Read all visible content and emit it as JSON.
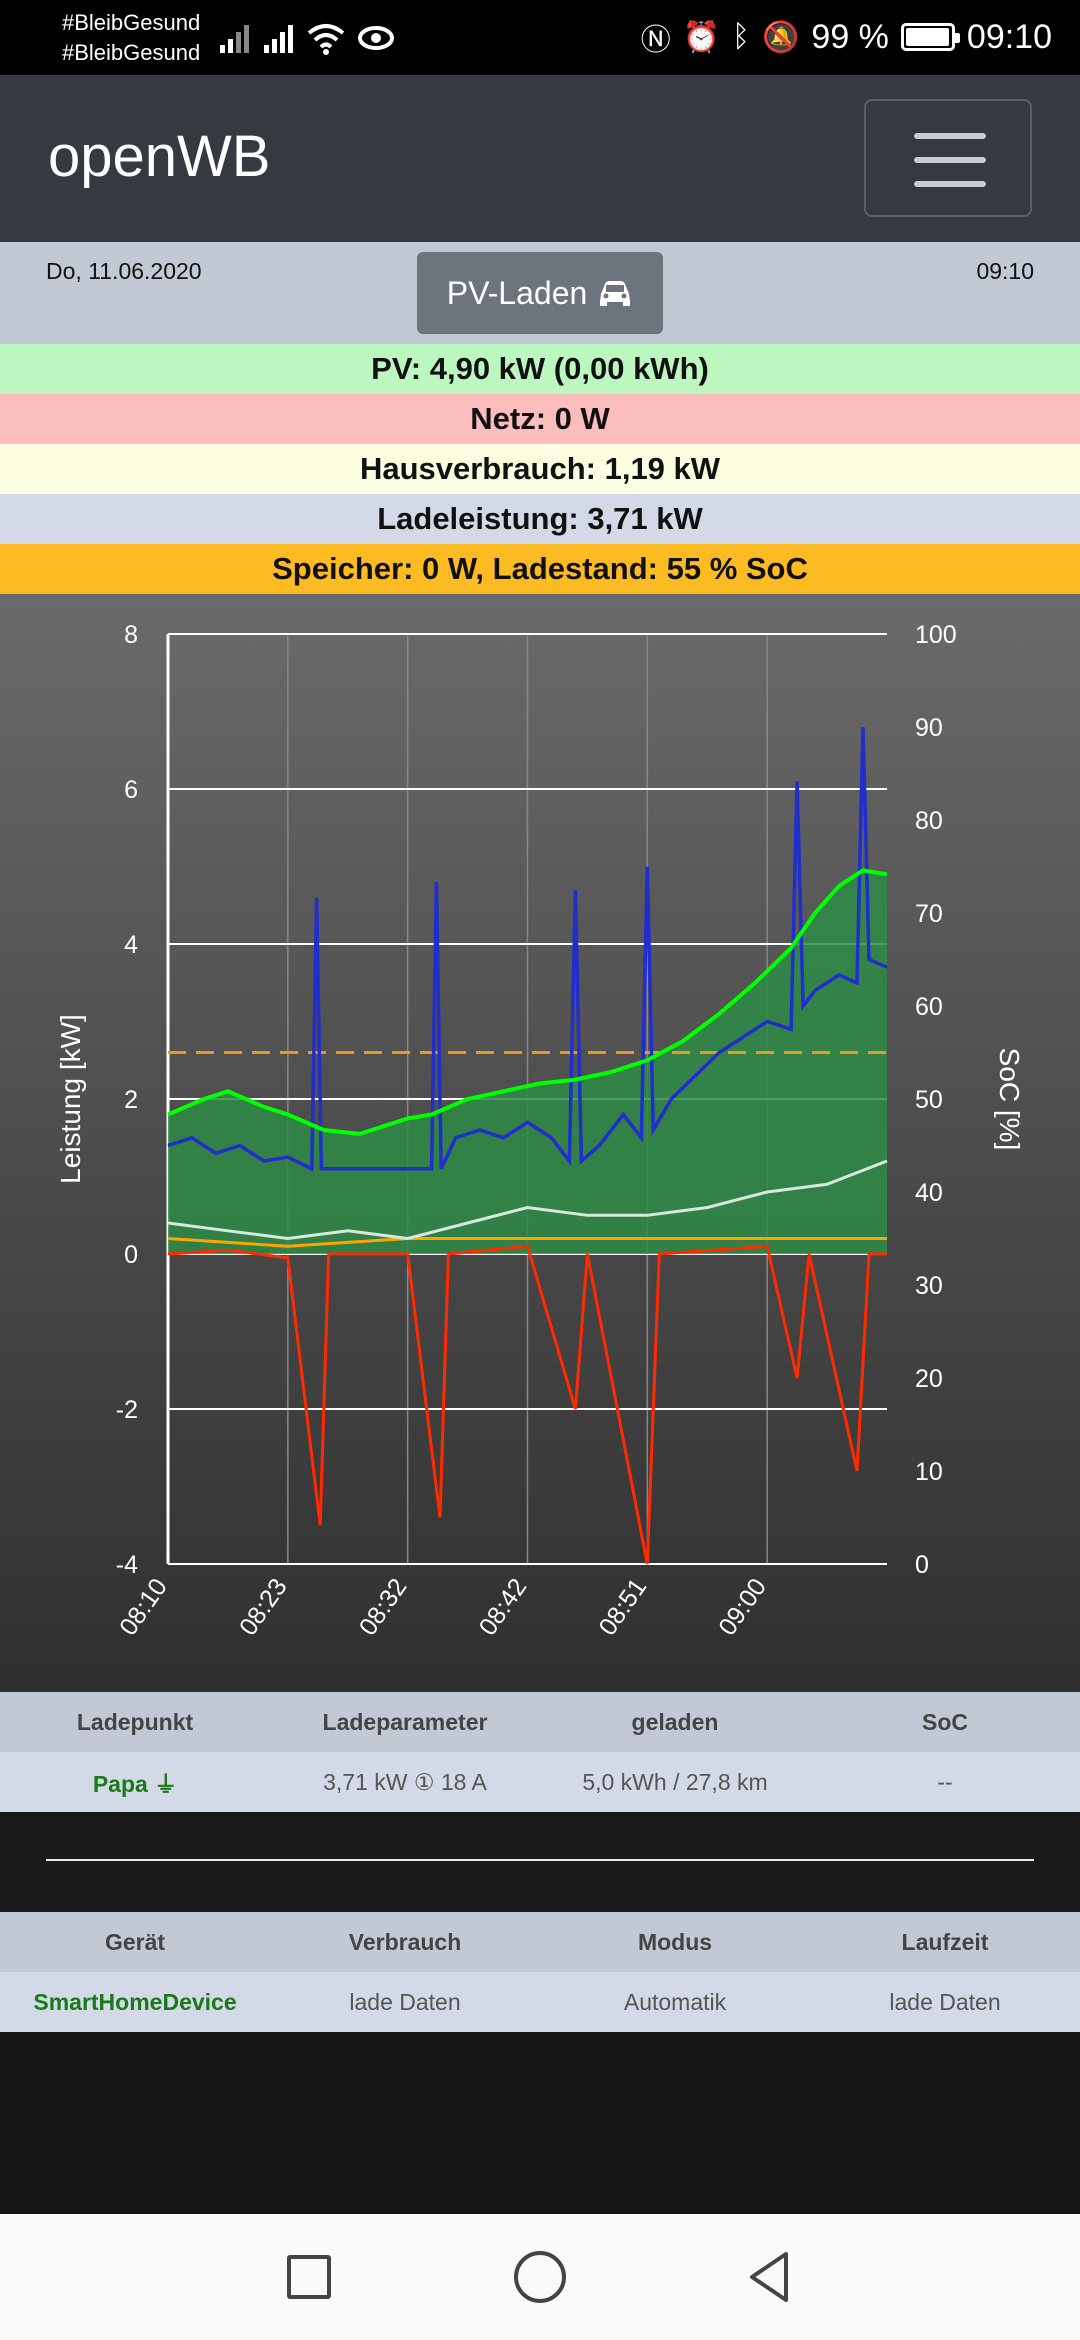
{
  "statusbar": {
    "carrier_line1": "#BleibGesund",
    "carrier_line2": "#BleibGesund",
    "battery_percent": "99 %",
    "battery_level": 0.99,
    "clock": "09:10",
    "icons": [
      "signal-icon",
      "signal-icon",
      "wifi-icon",
      "eye-icon",
      "nfc-icon",
      "alarm-icon",
      "bluetooth-icon",
      "mute-icon",
      "battery-icon"
    ]
  },
  "navbar": {
    "brand": "openWB",
    "menu_icon": "hamburger-icon"
  },
  "info": {
    "date": "Do, 11.06.2020",
    "time": "09:10",
    "mode_label": "PV-Laden",
    "mode_icon": "car-icon"
  },
  "bands": {
    "pv": "PV: 4,90 kW (0,00 kWh)",
    "netz": "Netz: 0 W",
    "haus": "Hausverbrauch: 1,19 kW",
    "lade": "Ladeleistung: 3,71 kW",
    "speicher": "Speicher: 0 W, Ladestand: 55 % SoC"
  },
  "colors": {
    "pv": "#00ff00",
    "pv_fill": "#2e8b46",
    "ladeleistung": "#1f2ecc",
    "netz": "#ff2a00",
    "speicher": "#ffa500",
    "hausverbrauch": "#d8e8dc",
    "soc": "#e89a20"
  },
  "chart_data": {
    "type": "line",
    "xlabel": "",
    "ylabel": "Leistung [kW]",
    "y2label": "SoC [%]",
    "ylim": [
      -4,
      8
    ],
    "yticks": [
      "8",
      "6",
      "4",
      "2",
      "0",
      "-2",
      "-4"
    ],
    "y2lim": [
      0,
      100
    ],
    "y2ticks": [
      "100",
      "90",
      "80",
      "70",
      "60",
      "50",
      "40",
      "30",
      "20",
      "10",
      "0"
    ],
    "xrange_minutes": [
      0,
      60
    ],
    "xticks": [
      {
        "label": "08:10",
        "m": 0
      },
      {
        "label": "08:23",
        "m": 10
      },
      {
        "label": "08:32",
        "m": 20
      },
      {
        "label": "08:42",
        "m": 30
      },
      {
        "label": "08:51",
        "m": 40
      },
      {
        "label": "09:00",
        "m": 50
      }
    ],
    "grid": true,
    "series": [
      {
        "key": "pv",
        "points": [
          [
            0,
            1.8
          ],
          [
            3,
            2.0
          ],
          [
            5,
            2.1
          ],
          [
            8,
            1.9
          ],
          [
            10,
            1.8
          ],
          [
            13,
            1.6
          ],
          [
            16,
            1.55
          ],
          [
            20,
            1.75
          ],
          [
            22,
            1.8
          ],
          [
            25,
            2.0
          ],
          [
            28,
            2.1
          ],
          [
            31,
            2.2
          ],
          [
            34,
            2.25
          ],
          [
            37,
            2.35
          ],
          [
            40,
            2.5
          ],
          [
            43,
            2.75
          ],
          [
            46,
            3.1
          ],
          [
            49,
            3.5
          ],
          [
            52,
            3.95
          ],
          [
            54,
            4.4
          ],
          [
            56,
            4.75
          ],
          [
            58,
            4.95
          ],
          [
            60,
            4.9
          ]
        ]
      },
      {
        "key": "ladeleistung",
        "points": [
          [
            0,
            1.4
          ],
          [
            2,
            1.5
          ],
          [
            4,
            1.3
          ],
          [
            6,
            1.4
          ],
          [
            8,
            1.2
          ],
          [
            10,
            1.25
          ],
          [
            12,
            1.1
          ],
          [
            12.4,
            4.6
          ],
          [
            12.8,
            1.1
          ],
          [
            14,
            1.1
          ],
          [
            16,
            1.1
          ],
          [
            18,
            1.1
          ],
          [
            22,
            1.1
          ],
          [
            22.4,
            4.8
          ],
          [
            22.8,
            1.1
          ],
          [
            24,
            1.5
          ],
          [
            26,
            1.6
          ],
          [
            28,
            1.5
          ],
          [
            30,
            1.7
          ],
          [
            32,
            1.5
          ],
          [
            33.5,
            1.2
          ],
          [
            34,
            4.7
          ],
          [
            34.5,
            1.2
          ],
          [
            36,
            1.4
          ],
          [
            38,
            1.8
          ],
          [
            39.5,
            1.5
          ],
          [
            40,
            5.0
          ],
          [
            40.5,
            1.6
          ],
          [
            42,
            2.0
          ],
          [
            44,
            2.3
          ],
          [
            46,
            2.6
          ],
          [
            48,
            2.8
          ],
          [
            50,
            3.0
          ],
          [
            52,
            2.9
          ],
          [
            52.5,
            6.1
          ],
          [
            53,
            3.2
          ],
          [
            54,
            3.4
          ],
          [
            56,
            3.6
          ],
          [
            57.5,
            3.5
          ],
          [
            58,
            6.8
          ],
          [
            58.5,
            3.8
          ],
          [
            60,
            3.7
          ]
        ]
      },
      {
        "key": "hausverbrauch",
        "points": [
          [
            0,
            0.4
          ],
          [
            5,
            0.3
          ],
          [
            10,
            0.2
          ],
          [
            15,
            0.3
          ],
          [
            20,
            0.2
          ],
          [
            25,
            0.4
          ],
          [
            30,
            0.6
          ],
          [
            35,
            0.5
          ],
          [
            40,
            0.5
          ],
          [
            45,
            0.6
          ],
          [
            50,
            0.8
          ],
          [
            55,
            0.9
          ],
          [
            60,
            1.2
          ]
        ]
      },
      {
        "key": "netz",
        "points": [
          [
            0,
            0.0
          ],
          [
            5,
            0.05
          ],
          [
            10,
            -0.05
          ],
          [
            12.7,
            -3.5
          ],
          [
            13.4,
            0.0
          ],
          [
            20,
            0.0
          ],
          [
            22.7,
            -3.4
          ],
          [
            23.4,
            0.0
          ],
          [
            30,
            0.1
          ],
          [
            34,
            -2.0
          ],
          [
            35,
            0.0
          ],
          [
            40,
            -4.0
          ],
          [
            41,
            0.0
          ],
          [
            50,
            0.1
          ],
          [
            52.5,
            -1.6
          ],
          [
            53.5,
            0.0
          ],
          [
            57.5,
            -2.8
          ],
          [
            58.5,
            0.0
          ],
          [
            60,
            0.0
          ]
        ]
      },
      {
        "key": "speicher",
        "points": [
          [
            0,
            0.2
          ],
          [
            10,
            0.1
          ],
          [
            20,
            0.2
          ],
          [
            30,
            0.2
          ],
          [
            40,
            0.2
          ],
          [
            50,
            0.2
          ],
          [
            60,
            0.2
          ]
        ]
      }
    ],
    "soc_percent": 55
  },
  "chargepoints": {
    "headers": [
      "Ladepunkt",
      "Ladeparameter",
      "geladen",
      "SoC"
    ],
    "rows": [
      {
        "name": "Papa",
        "icon": "plug-icon",
        "params": "3,71 kW ① 18 A",
        "charged": "5,0 kWh / 27,8 km",
        "soc": "--"
      }
    ]
  },
  "devices": {
    "headers": [
      "Gerät",
      "Verbrauch",
      "Modus",
      "Laufzeit"
    ],
    "rows": [
      {
        "name": "SmartHomeDevice",
        "consumption": "lade Daten",
        "mode": "Automatik",
        "runtime": "lade Daten"
      }
    ]
  }
}
